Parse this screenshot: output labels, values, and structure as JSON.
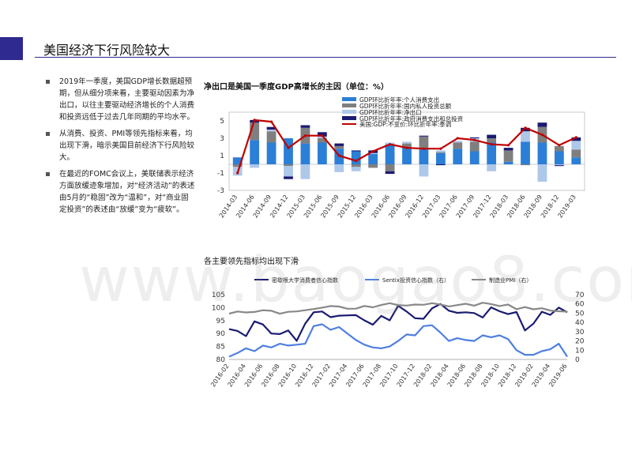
{
  "page": {
    "title": "美国经济下行风险较大"
  },
  "bullets": [
    "2019年一季度，美国GDP增长数据超预期，但从细分项来看，主要驱动因素为净出口，以往主要驱动经济增长的个人消费和投资远低于过去几年同期的平均水平。",
    "从消费、投资、PMI等领先指标来看，均出现下滑，暗示美国目前经济下行风险较大。",
    "在最近的FOMC会议上，美联储表示经济方面放缓迹象增加，对“经济活动”的表述由5月的“稳固”改为“温和”，对“商业固定投资”的表述由“放缓”变为“疲软”。"
  ],
  "colors": {
    "accent": "#2e2a90",
    "consumption": "#2b7fd6",
    "investment": "#7f7f7f",
    "net_exports": "#aec8ea",
    "government": "#1a1a72",
    "gdp_line": "#c00000",
    "michigan": "#1a1a72",
    "sentix": "#4f7fe0",
    "pmi": "#888888"
  },
  "watermark": "www.baogao8.com",
  "chart_data": [
    {
      "type": "bar",
      "title": "净出口是美国一季度GDP高增长的主因（单位：%）",
      "stacked": true,
      "categories": [
        "2014-03",
        "2014-06",
        "2014-09",
        "2014-12",
        "2015-03",
        "2015-06",
        "2015-09",
        "2015-12",
        "2016-03",
        "2016-06",
        "2016-09",
        "2016-12",
        "2017-03",
        "2017-06",
        "2017-09",
        "2017-12",
        "2018-03",
        "2018-06",
        "2018-09",
        "2018-12",
        "2019-03"
      ],
      "tick_labels": [
        "2014-03",
        "2014-06",
        "2014-09",
        "2014-12",
        "2015-03",
        "2015-06",
        "2015-09",
        "2015-12",
        "2016-03",
        "2016-06",
        "2016-09",
        "2016-12",
        "2017-03",
        "2017-06",
        "2017-09",
        "2017-12",
        "2018-03",
        "2018-06",
        "2018-09",
        "2018-12",
        "2019-03"
      ],
      "ylim": [
        -3,
        6
      ],
      "yticks": [
        -3,
        -1,
        1,
        3,
        5
      ],
      "legend_position": "top-right",
      "series": [
        {
          "name": "GDP环比折年率:个人消费支出",
          "kind": "bar",
          "values": [
            0.8,
            2.8,
            2.5,
            3.0,
            2.4,
            2.5,
            1.8,
            1.5,
            1.2,
            2.3,
            1.9,
            1.9,
            1.3,
            1.8,
            1.5,
            2.5,
            0.3,
            2.6,
            2.5,
            1.5,
            0.8
          ]
        },
        {
          "name": "GDP环比折年率:国内私人投资总额",
          "kind": "bar",
          "values": [
            -0.3,
            2.0,
            1.3,
            -0.2,
            1.8,
            0.5,
            0.3,
            -0.3,
            -0.4,
            -0.8,
            0.5,
            1.3,
            0.1,
            0.7,
            1.1,
            0.5,
            1.3,
            -0.1,
            1.8,
            0.6,
            0.9
          ]
        },
        {
          "name": "GDP环比折年率:净出口",
          "kind": "bar",
          "values": [
            -1.0,
            -0.4,
            0.2,
            -1.2,
            -1.7,
            0.2,
            -0.9,
            -0.5,
            0.1,
            0.2,
            0.2,
            -1.4,
            0.2,
            0.2,
            0.4,
            -0.8,
            0.0,
            1.2,
            -2.0,
            -0.1,
            1.0
          ]
        },
        {
          "name": "GDP环比折年率:政府消费支出和总投资",
          "kind": "bar",
          "values": [
            0.0,
            0.3,
            0.3,
            -0.3,
            0.3,
            0.5,
            0.3,
            0.1,
            0.3,
            -0.3,
            0.0,
            0.1,
            -0.1,
            0.0,
            0.1,
            0.4,
            0.3,
            0.4,
            0.5,
            -0.1,
            0.4
          ]
        },
        {
          "name": "美国:GDP:不变价:环比折年率:季调",
          "kind": "line",
          "values": [
            -1.0,
            5.1,
            4.9,
            1.9,
            3.3,
            3.3,
            1.0,
            0.4,
            1.5,
            2.3,
            1.9,
            1.8,
            1.8,
            3.0,
            2.8,
            2.3,
            2.2,
            4.2,
            3.4,
            2.2,
            3.1
          ]
        }
      ]
    },
    {
      "type": "line",
      "title": "各主要领先指标均出现下滑",
      "categories": [
        "2016-02",
        "2016-03",
        "2016-04",
        "2016-05",
        "2016-06",
        "2016-07",
        "2016-08",
        "2016-09",
        "2016-10",
        "2016-11",
        "2016-12",
        "2017-01",
        "2017-02",
        "2017-03",
        "2017-04",
        "2017-05",
        "2017-06",
        "2017-07",
        "2017-08",
        "2017-09",
        "2017-10",
        "2017-11",
        "2017-12",
        "2018-01",
        "2018-02",
        "2018-03",
        "2018-04",
        "2018-05",
        "2018-06",
        "2018-07",
        "2018-08",
        "2018-09",
        "2018-10",
        "2018-11",
        "2018-12",
        "2019-01",
        "2019-02",
        "2019-03",
        "2019-04",
        "2019-05",
        "2019-06"
      ],
      "tick_labels": [
        "2016-02",
        "2016-04",
        "2016-06",
        "2016-08",
        "2016-10",
        "2016-12",
        "2017-02",
        "2017-04",
        "2017-06",
        "2017-08",
        "2017-10",
        "2017-12",
        "2018-02",
        "2018-04",
        "2018-06",
        "2018-08",
        "2018-10",
        "2018-12",
        "2019-02",
        "2019-04",
        "2019-06"
      ],
      "ylim_left": [
        80,
        105
      ],
      "yticks_left": [
        80,
        85,
        90,
        95,
        100,
        105
      ],
      "ylim_right": [
        0,
        70
      ],
      "yticks_right": [
        0,
        10,
        20,
        30,
        40,
        50,
        60,
        70
      ],
      "legend_position": "top",
      "series": [
        {
          "name": "密歇根大学消费者信心指数",
          "axis": "left",
          "values": [
            91.7,
            91.0,
            89.0,
            94.7,
            93.5,
            90.0,
            89.8,
            91.2,
            87.2,
            93.8,
            98.2,
            98.5,
            96.3,
            96.9,
            97.0,
            97.1,
            95.1,
            93.4,
            96.8,
            95.1,
            100.7,
            98.5,
            95.9,
            95.7,
            99.7,
            101.4,
            98.8,
            98.0,
            98.2,
            97.9,
            96.2,
            100.1,
            98.6,
            97.5,
            98.3,
            91.2,
            93.8,
            98.4,
            97.2,
            100.0,
            98.2
          ]
        },
        {
          "name": "Sentix投资信心指数（右）",
          "axis": "right",
          "values": [
            3.0,
            7.0,
            12.0,
            9.0,
            15.0,
            13.0,
            17.0,
            15.0,
            16.0,
            17.0,
            36.0,
            38.0,
            32.0,
            35.0,
            28.0,
            21.0,
            16.0,
            13.0,
            12.0,
            14.0,
            20.0,
            27.0,
            26.0,
            36.0,
            37.0,
            29.0,
            20.0,
            23.0,
            21.0,
            20.0,
            26.0,
            24.0,
            26.0,
            22.0,
            10.0,
            5.0,
            5.0,
            9.0,
            11.0,
            17.0,
            3.0
          ]
        },
        {
          "name": "制造业PMI（右）",
          "axis": "right",
          "values": [
            49.5,
            51.8,
            50.8,
            51.3,
            53.2,
            52.6,
            49.4,
            51.5,
            51.9,
            53.2,
            54.5,
            56.0,
            57.7,
            57.2,
            54.8,
            54.9,
            57.8,
            56.3,
            58.8,
            60.8,
            58.7,
            58.2,
            59.3,
            59.1,
            60.8,
            59.3,
            57.3,
            58.7,
            60.2,
            58.1,
            61.3,
            59.8,
            57.7,
            59.3,
            54.3,
            56.6,
            54.2,
            55.3,
            52.8,
            52.1,
            51.7
          ]
        }
      ]
    }
  ]
}
